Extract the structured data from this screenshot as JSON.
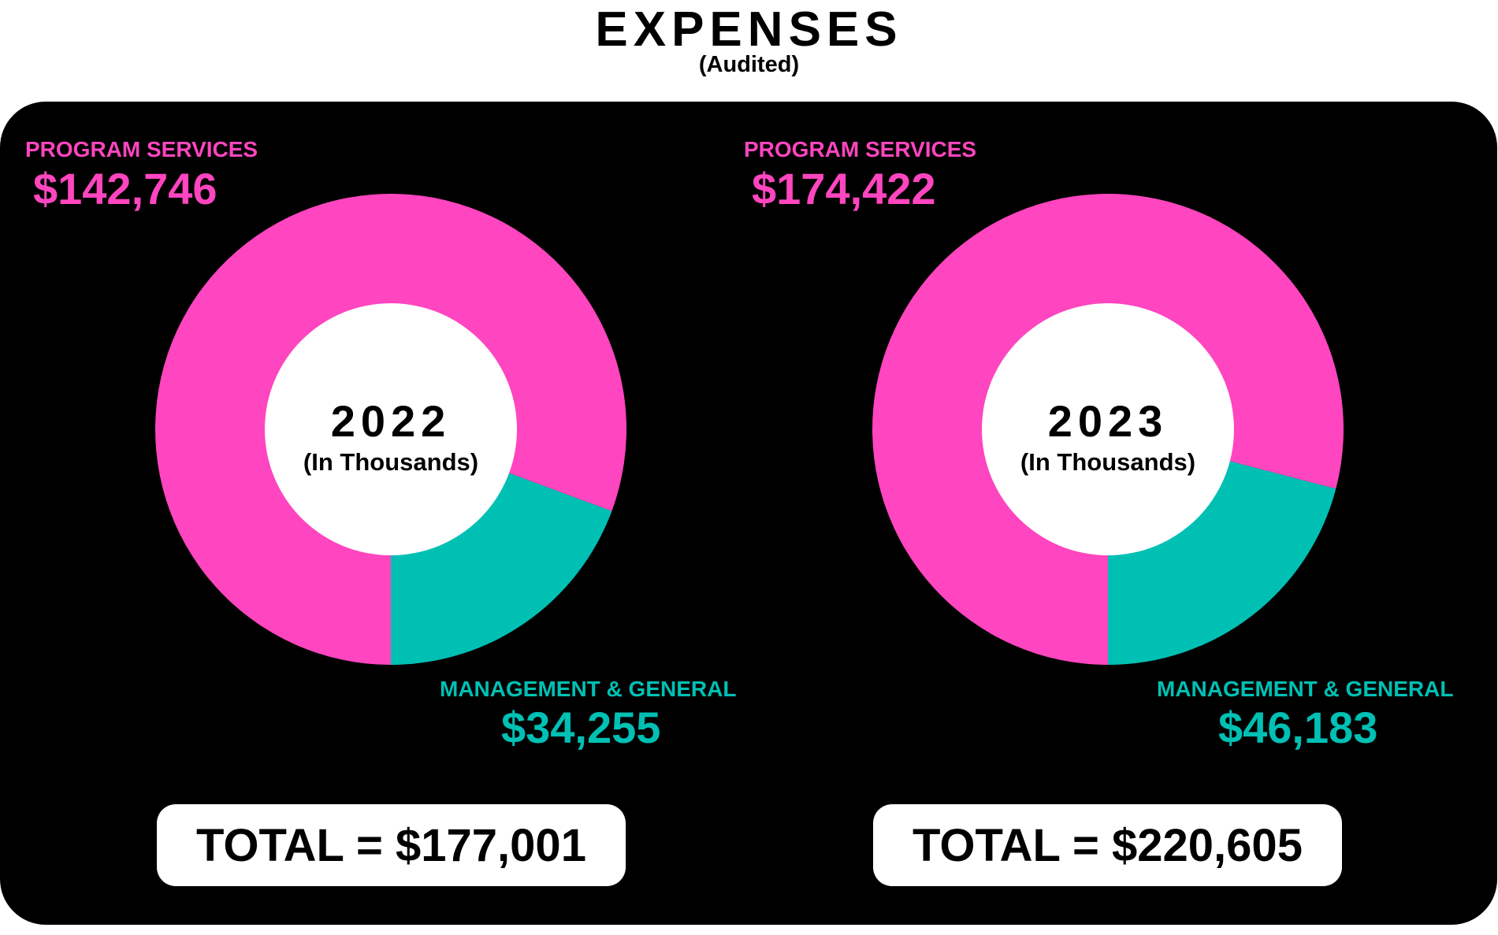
{
  "header": {
    "title": "EXPENSES",
    "subtitle": "(Audited)"
  },
  "colors": {
    "program": "#ff45bf",
    "management": "#00c0b4",
    "background": "#000000",
    "center": "#ffffff"
  },
  "chart_data": [
    {
      "type": "pie",
      "center_label": "2022",
      "center_sublabel": "(In Thousands)",
      "categories": [
        "PROGRAM SERVICES",
        "MANAGEMENT & GENERAL"
      ],
      "values": [
        142746,
        34255
      ],
      "value_labels": [
        "$142,746",
        "$34,255"
      ],
      "total_label": "TOTAL = $177,001"
    },
    {
      "type": "pie",
      "center_label": "2023",
      "center_sublabel": "(In Thousands)",
      "categories": [
        "PROGRAM SERVICES",
        "MANAGEMENT & GENERAL"
      ],
      "values": [
        174422,
        46183
      ],
      "value_labels": [
        "$174,422",
        "$46,183"
      ],
      "total_label": "TOTAL = $220,605"
    }
  ]
}
